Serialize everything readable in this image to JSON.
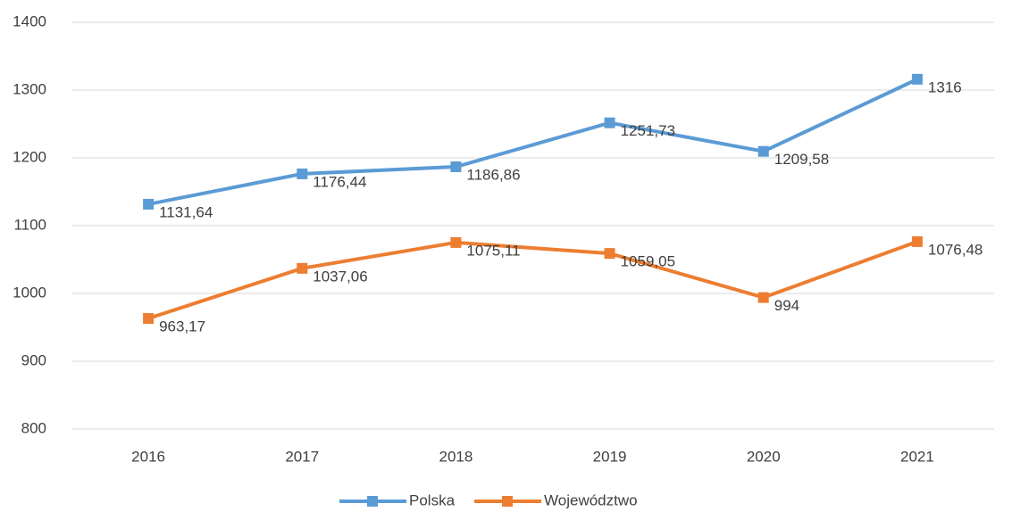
{
  "chart_data": {
    "type": "line",
    "categories": [
      "2016",
      "2017",
      "2018",
      "2019",
      "2020",
      "2021"
    ],
    "series": [
      {
        "name": "Polska",
        "color": "#5b9bd5",
        "values": [
          1131.64,
          1176.44,
          1186.86,
          1251.73,
          1209.58,
          1316
        ],
        "value_labels": [
          "1131,64",
          "1176,44",
          "1186,86",
          "1251,73",
          "1209,58",
          "1316"
        ]
      },
      {
        "name": "Województwo",
        "color": "#ed7d31",
        "values": [
          963.17,
          1037.06,
          1075.11,
          1059.05,
          994,
          1076.48
        ],
        "value_labels": [
          "963,17",
          "1037,06",
          "1075,11",
          "1059,05",
          "994",
          "1076,48"
        ]
      }
    ],
    "ylim": [
      800,
      1400
    ],
    "yticks": [
      800,
      900,
      1000,
      1100,
      1200,
      1300,
      1400
    ],
    "grid": true,
    "legend": "bottom"
  }
}
